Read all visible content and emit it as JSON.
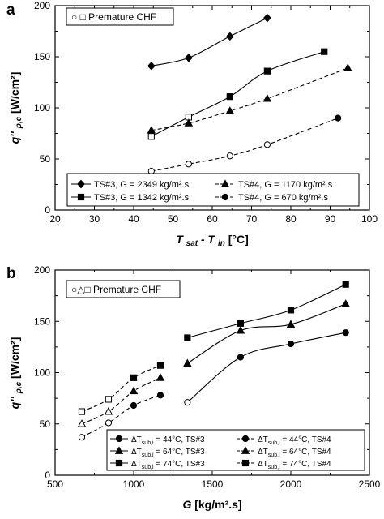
{
  "chart_data": [
    {
      "type": "line",
      "panel_label": "a",
      "xlabel_main": "T",
      "xlabel_sub1": "sat",
      "xlabel_mid": " -  T",
      "xlabel_sub2": "in",
      "xlabel_unit": " [°C]",
      "ylabel_main": "q''",
      "ylabel_sub": "p,c",
      "ylabel_unit": "[W/cm²]",
      "xlim": [
        20,
        100
      ],
      "ylim": [
        0,
        200
      ],
      "xticks": [
        "20",
        "30",
        "40",
        "50",
        "60",
        "70",
        "80",
        "90",
        "100"
      ],
      "yticks": [
        "0",
        "50",
        "100",
        "150",
        "200"
      ],
      "grid": false,
      "note": "○ □ Premature CHF",
      "legend_placement": "bottom",
      "series": [
        {
          "name": "TS#3, G = 2349 kg/m².s",
          "marker": "diamond",
          "dash": "solid",
          "x": [
            44.5,
            54,
            64.5,
            74
          ],
          "y": [
            141,
            149,
            170,
            188
          ],
          "premature": []
        },
        {
          "name": "TS#3, G = 1342 kg/m².s",
          "marker": "square",
          "dash": "solid",
          "x": [
            44.5,
            54,
            64.5,
            74,
            88.5
          ],
          "y": [
            72,
            91,
            111,
            136,
            155
          ],
          "premature": [
            0,
            1
          ]
        },
        {
          "name": "TS#4, G = 1170 kg/m².s",
          "marker": "triangle",
          "dash": "dashed",
          "x": [
            44.5,
            54,
            64.5,
            74,
            94.5
          ],
          "y": [
            78,
            85,
            97,
            109,
            139
          ],
          "premature": []
        },
        {
          "name": "TS#4, G = 670 kg/m².s",
          "marker": "circle",
          "dash": "dashed",
          "x": [
            44.5,
            54,
            64.5,
            74,
            92
          ],
          "y": [
            38,
            45,
            53,
            64,
            90
          ],
          "premature": [
            0,
            1,
            2,
            3
          ]
        }
      ]
    },
    {
      "type": "line",
      "panel_label": "b",
      "xlabel_main": "G",
      "xlabel_unit": " [kg/m².s]",
      "ylabel_main": "q''",
      "ylabel_sub": "p,c",
      "ylabel_unit": "[W/cm²]",
      "xlim": [
        500,
        2500
      ],
      "ylim": [
        0,
        200
      ],
      "xticks": [
        "500",
        "1000",
        "1500",
        "2000",
        "2500"
      ],
      "yticks": [
        "0",
        "50",
        "100",
        "150",
        "200"
      ],
      "grid": false,
      "note": "○△□ Premature CHF",
      "legend_placement": "bottom-right",
      "series": [
        {
          "name": "ΔT",
          "name_sub": "sub,i",
          "name_rest": " = 44°C, TS#3",
          "marker": "circle",
          "dash": "solid",
          "x": [
            1342,
            1680,
            2000,
            2349
          ],
          "y": [
            71,
            115,
            128,
            139
          ],
          "premature": [
            0
          ]
        },
        {
          "name": "ΔT",
          "name_sub": "sub,i",
          "name_rest": " = 44°C, TS#4",
          "marker": "circle",
          "dash": "dashed",
          "x": [
            670,
            840,
            1000,
            1170
          ],
          "y": [
            37,
            51,
            68,
            78
          ],
          "premature": [
            0,
            1
          ]
        },
        {
          "name": "ΔT",
          "name_sub": "sub,i",
          "name_rest": " = 64°C, TS#3",
          "marker": "triangle",
          "dash": "solid",
          "x": [
            1342,
            1680,
            2000,
            2349
          ],
          "y": [
            109,
            141,
            147,
            167
          ],
          "premature": []
        },
        {
          "name": "ΔT",
          "name_sub": "sub,i",
          "name_rest": " = 64°C, TS#4",
          "marker": "triangle",
          "dash": "dashed",
          "x": [
            670,
            840,
            1000,
            1170
          ],
          "y": [
            50,
            62,
            82,
            95
          ],
          "premature": [
            0,
            1
          ]
        },
        {
          "name": "ΔT",
          "name_sub": "sub,i",
          "name_rest": " = 74°C, TS#3",
          "marker": "square",
          "dash": "solid",
          "x": [
            1342,
            1680,
            2000,
            2349
          ],
          "y": [
            134,
            148,
            161,
            186
          ],
          "premature": []
        },
        {
          "name": "ΔT",
          "name_sub": "sub,i",
          "name_rest": " = 74°C, TS#4",
          "marker": "square",
          "dash": "dashed",
          "x": [
            670,
            840,
            1000,
            1170
          ],
          "y": [
            62,
            74,
            95,
            107
          ],
          "premature": [
            0,
            1
          ]
        }
      ]
    }
  ]
}
